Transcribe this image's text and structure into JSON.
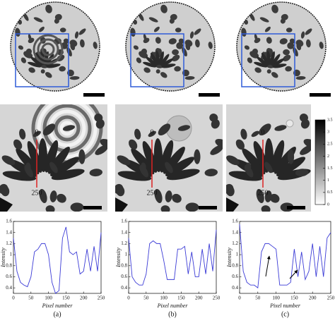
{
  "panels": [
    {
      "label": "(a)",
      "marker_start": "0",
      "marker_end": "250"
    },
    {
      "label": "(b)",
      "marker_start": "0",
      "marker_end": "250"
    },
    {
      "label": "(c)",
      "marker_start": "0",
      "marker_end": "250"
    }
  ],
  "colorbar": {
    "ticks": [
      0,
      0.5,
      1,
      1.5,
      2,
      2.5,
      3,
      3.5
    ]
  },
  "chart_data": [
    {
      "type": "line",
      "x_label": "Pixel number",
      "y_label": "Intensity",
      "xlim": [
        0,
        250
      ],
      "ylim": [
        0.3,
        1.6
      ],
      "xticks": [
        0,
        50,
        100,
        150,
        200,
        250
      ],
      "yticks": [
        0.4,
        0.6,
        0.8,
        1,
        1.2,
        1.4,
        1.6
      ],
      "x": [
        0,
        10,
        20,
        30,
        40,
        50,
        60,
        70,
        80,
        90,
        100,
        110,
        120,
        130,
        140,
        150,
        160,
        170,
        180,
        190,
        200,
        210,
        220,
        230,
        240,
        250
      ],
      "series": [
        {
          "color": "#3b3bd6",
          "values": [
            1.3,
            0.7,
            0.5,
            0.45,
            0.42,
            0.6,
            1.05,
            1.1,
            1.2,
            1.2,
            1.0,
            0.5,
            0.3,
            0.35,
            1.3,
            1.5,
            1.05,
            1.0,
            1.05,
            0.65,
            0.7,
            1.1,
            0.7,
            1.15,
            0.7,
            1.4
          ]
        }
      ]
    },
    {
      "type": "line",
      "x_label": "Pixel number",
      "y_label": "Intensity",
      "xlim": [
        0,
        250
      ],
      "ylim": [
        0.3,
        1.6
      ],
      "xticks": [
        0,
        50,
        100,
        150,
        200,
        250
      ],
      "yticks": [
        0.4,
        0.6,
        0.8,
        1,
        1.2,
        1.4,
        1.6
      ],
      "x": [
        0,
        10,
        20,
        30,
        40,
        50,
        60,
        70,
        80,
        90,
        100,
        110,
        120,
        130,
        140,
        150,
        160,
        170,
        180,
        190,
        200,
        210,
        220,
        230,
        240,
        250
      ],
      "series": [
        {
          "color": "#3b3bd6",
          "values": [
            1.3,
            0.6,
            0.5,
            0.45,
            0.45,
            0.65,
            1.2,
            1.25,
            1.2,
            1.2,
            0.9,
            0.55,
            0.55,
            0.55,
            1.1,
            1.1,
            1.15,
            0.65,
            1.05,
            0.6,
            0.6,
            1.1,
            0.65,
            1.2,
            0.7,
            1.45
          ]
        }
      ]
    },
    {
      "type": "line",
      "x_label": "Pixel number",
      "y_label": "Intensity",
      "xlim": [
        0,
        250
      ],
      "ylim": [
        0.3,
        1.6
      ],
      "xticks": [
        0,
        50,
        100,
        150,
        200,
        250
      ],
      "yticks": [
        0.4,
        0.6,
        0.8,
        1,
        1.2,
        1.4,
        1.6
      ],
      "x": [
        0,
        10,
        20,
        30,
        40,
        50,
        60,
        70,
        80,
        90,
        100,
        110,
        120,
        130,
        140,
        150,
        160,
        170,
        180,
        190,
        200,
        210,
        220,
        230,
        240,
        250
      ],
      "series": [
        {
          "color": "#3b3bd6",
          "values": [
            1.55,
            0.7,
            0.5,
            0.45,
            0.45,
            0.4,
            1.05,
            1.2,
            1.2,
            1.15,
            1.1,
            0.45,
            0.45,
            0.45,
            0.5,
            1.1,
            0.6,
            1.05,
            0.55,
            0.7,
            1.2,
            0.6,
            1.15,
            0.6,
            1.3,
            1.4
          ]
        }
      ]
    }
  ]
}
